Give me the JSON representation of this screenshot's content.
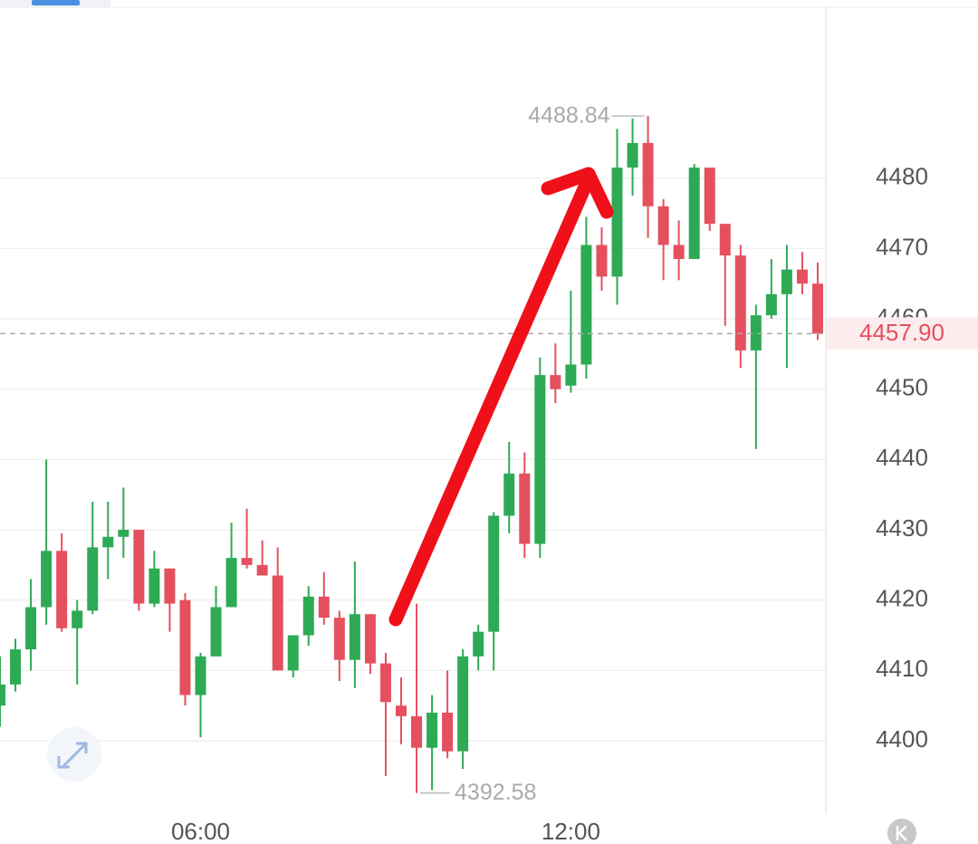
{
  "chart_data": {
    "type": "candlestick",
    "categories": [
      null,
      null,
      null,
      null,
      null,
      null,
      null,
      null,
      null,
      null,
      null,
      null,
      null,
      "06:00",
      null,
      null,
      null,
      null,
      null,
      null,
      null,
      null,
      null,
      null,
      null,
      null,
      null,
      null,
      null,
      null,
      null,
      null,
      null,
      null,
      null,
      null,
      null,
      "12:00",
      null,
      null,
      null,
      null,
      null,
      null,
      null,
      null,
      null,
      null,
      null,
      null,
      null,
      null,
      null,
      null
    ],
    "open": [
      4405,
      4408,
      4413,
      4419,
      4427,
      4416,
      4418.5,
      4427.5,
      4429,
      4430,
      4419.5,
      4424.5,
      4420,
      4406.5,
      4412,
      4419,
      4426,
      4425,
      4423.5,
      4410,
      4415,
      4420.5,
      4417.5,
      4411.5,
      4418,
      4411,
      4405,
      4403.5,
      4399,
      4404,
      4398.5,
      4412,
      4415.5,
      4432,
      4438,
      4428,
      4452,
      4450.5,
      4453.5,
      4470.5,
      4466,
      4481.5,
      4485,
      4476,
      4470.5,
      4468.5,
      4481.5,
      4473.5,
      4469,
      4455.5,
      4460.5,
      4463.5,
      4467,
      4465
    ],
    "high": [
      4412,
      4414.5,
      4423,
      4440,
      4429.5,
      4420,
      4434,
      4434,
      4436,
      4430,
      4427,
      4424.5,
      4421,
      4412.5,
      4422,
      4431,
      4433,
      4428.5,
      4427.5,
      4415,
      4422,
      4424,
      4418.5,
      4425.5,
      4418,
      4412.5,
      4409,
      4419.5,
      4406.5,
      4410,
      4413,
      4416.5,
      4432.5,
      4442.5,
      4441,
      4454.5,
      4456.5,
      4464,
      4474.5,
      4473,
      4487,
      4488.5,
      4488.84,
      4477,
      4474,
      4482,
      4481.5,
      4473.5,
      4470.5,
      4462,
      4468.5,
      4470.5,
      4469.5,
      4468
    ],
    "low": [
      4402,
      4407,
      4410,
      4416.5,
      4415.5,
      4408,
      4418,
      4423,
      4426,
      4418.5,
      4419,
      4415.5,
      4405,
      4400.5,
      4412,
      4419,
      4424.5,
      4423.5,
      4410,
      4409,
      4413.5,
      4416.5,
      4408.5,
      4407.5,
      4409.5,
      4395,
      4399.5,
      4392.58,
      4393,
      4397.5,
      4396,
      4410,
      4410,
      4429.5,
      4426,
      4426,
      4448,
      4449.5,
      4451.5,
      4464,
      4462,
      4477.5,
      4471.5,
      4465.5,
      4465.5,
      4468.5,
      4472.5,
      4459,
      4453,
      4441.5,
      4460,
      4453,
      4463.5,
      4457
    ],
    "close": [
      4408,
      4413,
      4419,
      4427,
      4416,
      4418.5,
      4427.5,
      4429,
      4430,
      4419.5,
      4424.5,
      4419.5,
      4406.5,
      4412,
      4419,
      4426,
      4425,
      4423.5,
      4410,
      4415,
      4420.5,
      4417.5,
      4411.5,
      4418,
      4411,
      4405.5,
      4403.5,
      4399,
      4404,
      4398.5,
      4412,
      4415.5,
      4432,
      4438,
      4428,
      4452,
      4450,
      4453.5,
      4470.5,
      4466,
      4481.5,
      4485,
      4476,
      4470.5,
      4468.5,
      4481.5,
      4473.5,
      4469,
      4455.5,
      4460.5,
      4463.5,
      4467,
      4465,
      4457.9
    ],
    "up_color": "#2eaa55",
    "down_color": "#e5505f",
    "ylim": [
      4389.7,
      4504.3
    ],
    "yticks": [
      4400,
      4410,
      4420,
      4430,
      4440,
      4450,
      4460,
      4470,
      4480
    ],
    "grid": true,
    "last_price": {
      "value": 4457.9,
      "label": "4457.90"
    }
  }
}
